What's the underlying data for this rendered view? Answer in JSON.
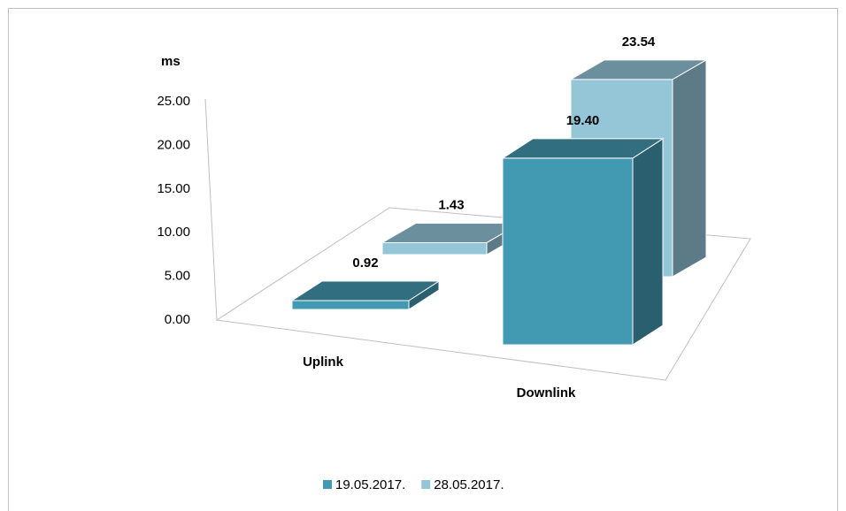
{
  "chart_data": {
    "type": "bar3d",
    "y_label": "ms",
    "categories": [
      "Uplink",
      "Downlink"
    ],
    "series": [
      {
        "name": "19.05.2017.",
        "color": "#4299b2",
        "values": [
          0.92,
          19.4
        ],
        "value_labels": [
          "0.92",
          "19.40"
        ]
      },
      {
        "name": "28.05.2017.",
        "color": "#95c6d8",
        "values": [
          1.43,
          23.54
        ],
        "value_labels": [
          "1.43",
          "23.54"
        ]
      }
    ],
    "ylim": [
      0,
      25
    ],
    "yticks": [
      {
        "value": 0,
        "label": "0.00"
      },
      {
        "value": 5,
        "label": "5.00"
      },
      {
        "value": 10,
        "label": "10.00"
      },
      {
        "value": 15,
        "label": "15.00"
      },
      {
        "value": 20,
        "label": "20.00"
      },
      {
        "value": 25,
        "label": "25.00"
      }
    ],
    "legend": "bottom"
  }
}
